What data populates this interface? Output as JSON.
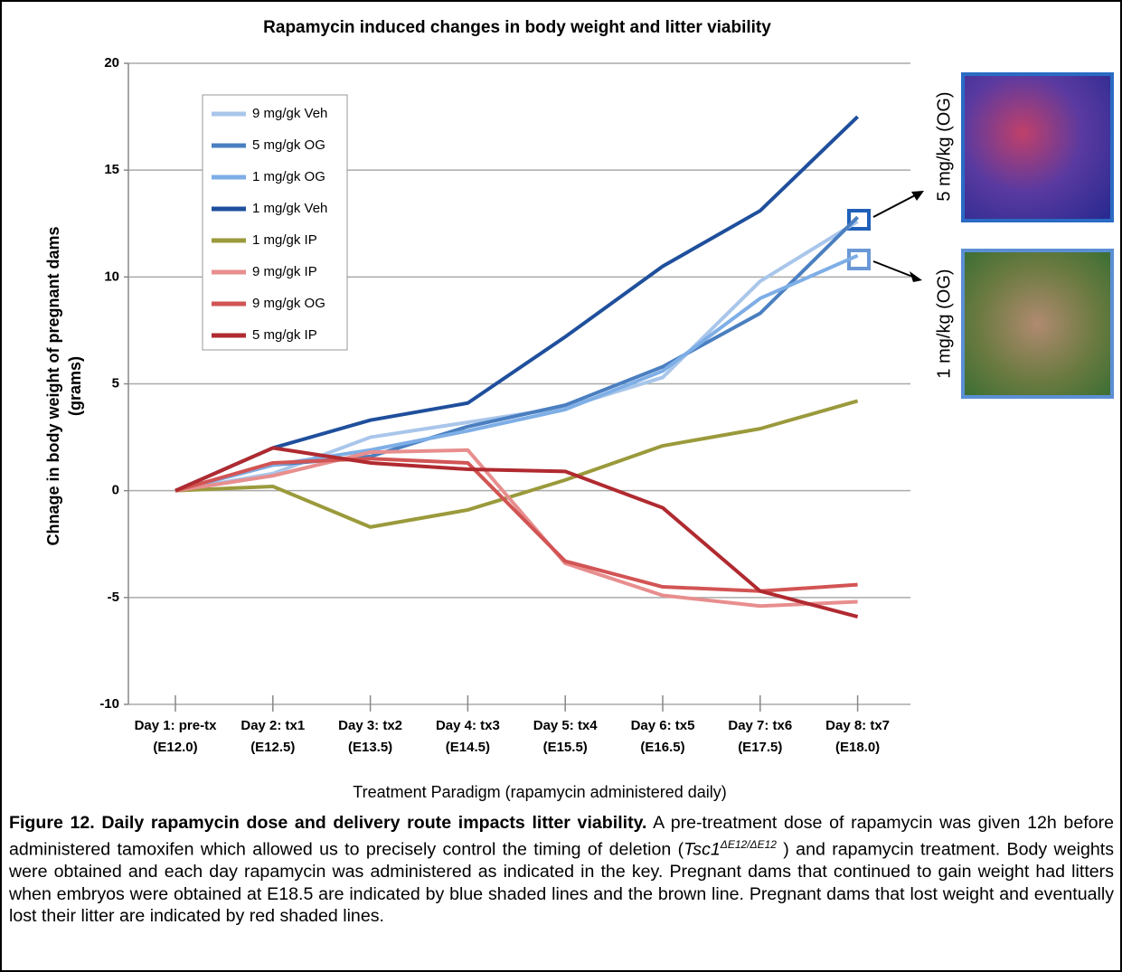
{
  "chart_data": {
    "type": "line",
    "title": "Rapamycin induced changes in body weight and litter viability",
    "y_label": [
      "Chnage in body weight of pregnant dams",
      "(grams)"
    ],
    "x_label": "Treatment Paradigm (rapamycin administered daily)",
    "categories": [
      [
        "Day 1: pre-tx",
        "(E12.0)"
      ],
      [
        "Day 2: tx1",
        "(E12.5)"
      ],
      [
        "Day 3: tx2",
        "(E13.5)"
      ],
      [
        "Day 4: tx3",
        "(E14.5)"
      ],
      [
        "Day 5: tx4",
        "(E15.5)"
      ],
      [
        "Day 6: tx5",
        "(E16.5)"
      ],
      [
        "Day 7: tx6",
        "(E17.5)"
      ],
      [
        "Day 8: tx7",
        "(E18.0)"
      ]
    ],
    "series": [
      {
        "name": "9 mg/gk Veh",
        "color": "#a9c6ea",
        "values": [
          0,
          0.8,
          2.5,
          3.2,
          3.9,
          5.3,
          9.8,
          12.6
        ]
      },
      {
        "name": "5 mg/gk OG",
        "color": "#4a7fc0",
        "values": [
          0,
          1.2,
          1.6,
          3.0,
          4.0,
          5.8,
          8.3,
          12.8
        ]
      },
      {
        "name": "1 mg/gk OG",
        "color": "#7eaee6",
        "values": [
          0,
          1.2,
          1.9,
          2.8,
          3.8,
          5.6,
          9.0,
          11.0
        ]
      },
      {
        "name": "1 mg/gk Veh",
        "color": "#1f4f9c",
        "values": [
          0,
          2.0,
          3.3,
          4.1,
          7.2,
          10.5,
          13.1,
          17.5
        ]
      },
      {
        "name": "1 mg/gk IP",
        "color": "#9a9a3c",
        "values": [
          0,
          0.2,
          -1.7,
          -0.9,
          0.5,
          2.1,
          2.9,
          4.2
        ]
      },
      {
        "name": "9 mg/gk IP",
        "color": "#e88e8e",
        "values": [
          0,
          0.7,
          1.8,
          1.9,
          -3.4,
          -4.9,
          -5.4,
          -5.2
        ]
      },
      {
        "name": "9 mg/gk OG",
        "color": "#d25454",
        "values": [
          0,
          1.3,
          1.5,
          1.3,
          -3.3,
          -4.5,
          -4.7,
          -4.4
        ]
      },
      {
        "name": "5 mg/gk IP",
        "color": "#b02a30",
        "values": [
          0,
          2.0,
          1.3,
          1.0,
          0.9,
          -0.8,
          -4.7,
          -5.9
        ]
      }
    ],
    "ylim": [
      -10,
      20
    ],
    "yticks": [
      20,
      15,
      10,
      5,
      0,
      -5,
      -10
    ],
    "grid": true,
    "legend": "upper-left",
    "annotations": [
      "5 mg/kg (OG)",
      "1 mg/kg (OG)"
    ]
  },
  "caption": {
    "title": "Figure 12. Daily rapamycin dose and delivery route impacts litter viability.",
    "text_before": "A pre-treatment dose of rapamycin was given 12h before administered tamoxifen which allowed us to precisely control the timing of deletion (",
    "gene": "Tsc1",
    "genotype": "ΔE12/ΔE12",
    "text_after": " ) and rapamycin treatment. Body weights were obtained and each day rapamycin was administered as indicated in the key. Pregnant dams that continued to gain weight had litters when embryos were obtained at E18.5 are indicated by blue shaded lines and the brown line. Pregnant dams that lost weight and eventually lost their litter are indicated by red shaded lines."
  }
}
